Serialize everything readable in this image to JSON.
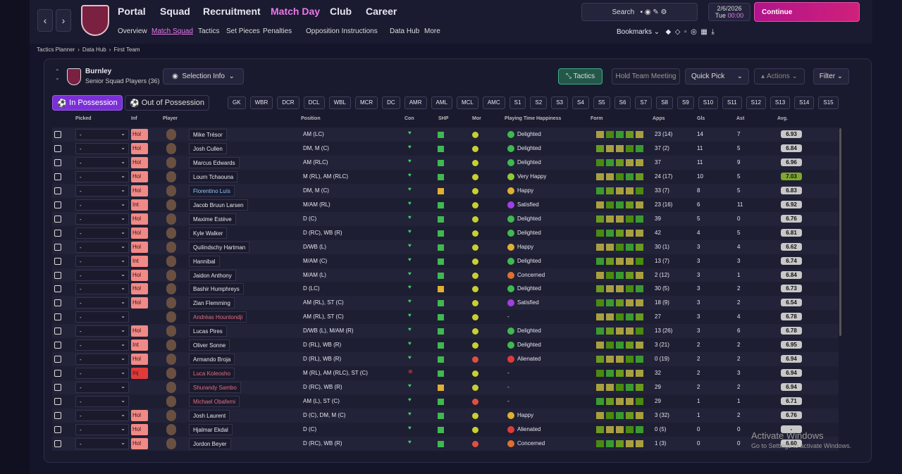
{
  "nav": {
    "menus": [
      "Portal",
      "Squad",
      "Recruitment",
      "Match Day",
      "Club",
      "Career"
    ],
    "submenu": [
      "Overview",
      "Match Squad",
      "Tactics",
      "Set Pieces",
      "Penalties",
      "Opposition Instructions",
      "Data Hub",
      "More"
    ],
    "search": "Search",
    "date": "2/6/2026",
    "day": "Tue",
    "time": "00:00",
    "continue": "Continue",
    "bookmarks": "Bookmarks"
  },
  "breadcrumb": [
    "Tactics Planner",
    "Data Hub",
    "First Team"
  ],
  "panel": {
    "club": "Burnley",
    "subtitle": "Senior Squad Players (36)",
    "selection_info": "Selection Info",
    "tactics": "Tactics",
    "hold_meeting": "Hold Team Meeting",
    "quick_pick": "Quick Pick",
    "actions": "Actions",
    "filter": "Filter",
    "tabs": [
      "In Possession",
      "Out of Possession"
    ],
    "positions": [
      "GK",
      "WBR",
      "DCR",
      "DCL",
      "WBL",
      "MCR",
      "DC",
      "AMR",
      "AML",
      "MCL",
      "AMC",
      "S1",
      "S2",
      "S3",
      "S4",
      "S5",
      "S6",
      "S7",
      "S8",
      "S9",
      "S10",
      "S11",
      "S12",
      "S13",
      "S14",
      "S15"
    ]
  },
  "table": {
    "columns": [
      "Picked",
      "Inf",
      "Player",
      "Position",
      "Con",
      "SHP",
      "Mor",
      "Playing Time Happiness",
      "Form",
      "Apps",
      "Gls",
      "Ast",
      "Avg."
    ],
    "rows": [
      {
        "picked": "-",
        "inf": "Hol",
        "name": "Mike Trésor",
        "position": "AM (LC)",
        "happiness": "Delighted",
        "happy_color": "#3fb950",
        "apps": "23 (14)",
        "gls": 14,
        "ast": 7,
        "avg": "6.93"
      },
      {
        "picked": "-",
        "inf": "Hol",
        "name": "Josh Cullen",
        "position": "DM, M (C)",
        "happiness": "Delighted",
        "happy_color": "#3fb950",
        "apps": "37 (2)",
        "gls": 11,
        "ast": 5,
        "avg": "6.84"
      },
      {
        "picked": "-",
        "inf": "Hol",
        "name": "Marcus Edwards",
        "position": "AM (RLC)",
        "happiness": "Delighted",
        "happy_color": "#3fb950",
        "apps": "37",
        "gls": 11,
        "ast": 9,
        "avg": "6.96"
      },
      {
        "picked": "-",
        "inf": "Hol",
        "name": "Lourn Tchaouna",
        "position": "M (RL), AM (RLC)",
        "happiness": "Very Happy",
        "happy_color": "#8fc93a",
        "apps": "24 (17)",
        "gls": 10,
        "ast": 5,
        "avg": "7.03",
        "avg_color": "#7da82d"
      },
      {
        "picked": "-",
        "inf": "Hol",
        "name": "Florentino Luís",
        "name_color": "#8ec5ff",
        "position": "DM, M (C)",
        "happiness": "Happy",
        "happy_color": "#e0b030",
        "apps": "33 (7)",
        "gls": 8,
        "ast": 5,
        "avg": "6.83"
      },
      {
        "picked": "-",
        "inf": "Int",
        "name": "Jacob Bruun Larsen",
        "position": "M/AM (RL)",
        "happiness": "Satisfied",
        "happy_color": "#a040e0",
        "apps": "23 (16)",
        "gls": 6,
        "ast": 11,
        "avg": "6.92"
      },
      {
        "picked": "-",
        "inf": "Hol",
        "name": "Maxime Estève",
        "position": "D (C)",
        "happiness": "Delighted",
        "happy_color": "#3fb950",
        "apps": "39",
        "gls": 5,
        "ast": 0,
        "avg": "6.76"
      },
      {
        "picked": "-",
        "inf": "Hol",
        "name": "Kyle Walker",
        "position": "D (RC), WB (R)",
        "happiness": "Delighted",
        "happy_color": "#3fb950",
        "apps": "42",
        "gls": 4,
        "ast": 5,
        "avg": "6.81"
      },
      {
        "picked": "-",
        "inf": "Hol",
        "name": "Quilindschy Hartman",
        "position": "D/WB (L)",
        "happiness": "Happy",
        "happy_color": "#e0b030",
        "apps": "30 (1)",
        "gls": 3,
        "ast": 4,
        "avg": "6.62"
      },
      {
        "picked": "-",
        "inf": "Int",
        "name": "Hannibal",
        "position": "M/AM (C)",
        "happiness": "Delighted",
        "happy_color": "#3fb950",
        "apps": "13 (7)",
        "gls": 3,
        "ast": 3,
        "avg": "6.74"
      },
      {
        "picked": "-",
        "inf": "Hol",
        "name": "Jaidon Anthony",
        "position": "M/AM (L)",
        "happiness": "Concerned",
        "happy_color": "#e07030",
        "apps": "2 (12)",
        "gls": 3,
        "ast": 1,
        "avg": "6.84"
      },
      {
        "picked": "-",
        "inf": "Hol",
        "name": "Bashir Humphreys",
        "position": "D (LC)",
        "happiness": "Delighted",
        "happy_color": "#3fb950",
        "apps": "30 (5)",
        "gls": 3,
        "ast": 2,
        "avg": "6.73"
      },
      {
        "picked": "-",
        "inf": "Hol",
        "name": "Zian Flemming",
        "position": "AM (RL), ST (C)",
        "happiness": "Satisfied",
        "happy_color": "#a040e0",
        "apps": "18 (9)",
        "gls": 3,
        "ast": 2,
        "avg": "6.54"
      },
      {
        "picked": "-",
        "name": "Andréas Hountondji",
        "name_color": "#e46d83",
        "position": "AM (RL), ST (C)",
        "happiness": "-",
        "apps": "27",
        "gls": 3,
        "ast": 4,
        "avg": "6.78"
      },
      {
        "picked": "-",
        "inf": "Hol",
        "name": "Lucas Pires",
        "position": "D/WB (L), M/AM (R)",
        "happiness": "Delighted",
        "happy_color": "#3fb950",
        "apps": "13 (26)",
        "gls": 3,
        "ast": 6,
        "avg": "6.78"
      },
      {
        "picked": "-",
        "inf": "Int",
        "name": "Oliver Sonne",
        "position": "D (RL), WB (R)",
        "happiness": "Delighted",
        "happy_color": "#3fb950",
        "apps": "3 (21)",
        "gls": 2,
        "ast": 2,
        "avg": "6.95"
      },
      {
        "picked": "-",
        "inf": "Hol",
        "name": "Armando Broja",
        "position": "D (RL), WB (R)",
        "happiness": "Alienated",
        "happy_color": "#e03b3b",
        "apps": "0 (19)",
        "gls": 2,
        "ast": 2,
        "avg": "6.94"
      },
      {
        "picked": "-",
        "inf": "Inj",
        "inf_color": "#e03b3b",
        "name": "Luca Koleosho",
        "name_color": "#e46d83",
        "position": "M (RL), AM (RLC), ST (C)",
        "happiness": "-",
        "apps": "32",
        "gls": 2,
        "ast": 3,
        "avg": "6.94"
      },
      {
        "picked": "-",
        "name": "Shurandy Sambo",
        "name_color": "#e46d83",
        "position": "D (RC), WB (R)",
        "happiness": "-",
        "apps": "29",
        "gls": 2,
        "ast": 2,
        "avg": "6.94"
      },
      {
        "picked": "-",
        "name": "Michael Obafemi",
        "name_color": "#e46d83",
        "position": "AM (L), ST (C)",
        "happiness": "-",
        "apps": "29",
        "gls": 1,
        "ast": 1,
        "avg": "6.71"
      },
      {
        "picked": "-",
        "inf": "Hol",
        "name": "Josh Laurent",
        "position": "D (C), DM, M (C)",
        "happiness": "Happy",
        "happy_color": "#e0b030",
        "apps": "3 (32)",
        "gls": 1,
        "ast": 2,
        "avg": "6.76"
      },
      {
        "picked": "-",
        "inf": "Hol",
        "name": "Hjalmar Ekdal",
        "position": "D (C)",
        "happiness": "Alienated",
        "happy_color": "#e03b3b",
        "apps": "0 (5)",
        "gls": 0,
        "ast": 0,
        "avg": "-"
      },
      {
        "picked": "-",
        "inf": "Hol",
        "name": "Jordon Beyer",
        "position": "D (RC), WB (R)",
        "happiness": "Concerned",
        "happy_color": "#e07030",
        "apps": "1 (3)",
        "gls": 0,
        "ast": 0,
        "avg": "6.60"
      }
    ]
  },
  "watermark": {
    "title": "Activate Windows",
    "text": "Go to Settings to activate Windows."
  }
}
